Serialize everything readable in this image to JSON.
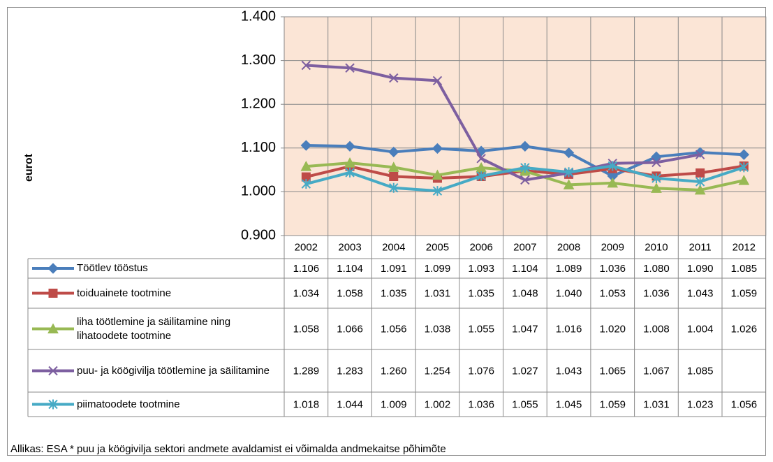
{
  "chart_data": {
    "type": "line",
    "y_label": "eurot",
    "footnote": "Allikas: ESA * puu ja köögivilja sektori andmete avaldamist ei võimalda andmekaitse põhimõte",
    "categories": [
      "2002",
      "2003",
      "2004",
      "2005",
      "2006",
      "2007",
      "2008",
      "2009",
      "2010",
      "2011",
      "2012"
    ],
    "ylim": [
      0.9,
      1.4
    ],
    "yticks": [
      {
        "value": 0.9,
        "label": "0.900"
      },
      {
        "value": 1.0,
        "label": "1.000"
      },
      {
        "value": 1.1,
        "label": "1.100"
      },
      {
        "value": 1.2,
        "label": "1.200"
      },
      {
        "value": 1.3,
        "label": "1.300"
      },
      {
        "value": 1.4,
        "label": "1.400"
      }
    ],
    "grid": true,
    "plot_background": "#fbe5d6",
    "series": [
      {
        "name": "Töötlev tööstus",
        "color": "#4a7ebb",
        "marker": "diamond",
        "values": [
          1.106,
          1.104,
          1.091,
          1.099,
          1.093,
          1.104,
          1.089,
          1.036,
          1.08,
          1.09,
          1.085
        ],
        "value_labels": [
          "1.106",
          "1.104",
          "1.091",
          "1.099",
          "1.093",
          "1.104",
          "1.089",
          "1.036",
          "1.080",
          "1.090",
          "1.085"
        ]
      },
      {
        "name": "toiduainete tootmine",
        "color": "#be4b48",
        "marker": "square",
        "values": [
          1.034,
          1.058,
          1.035,
          1.031,
          1.035,
          1.048,
          1.04,
          1.053,
          1.036,
          1.043,
          1.059
        ],
        "value_labels": [
          "1.034",
          "1.058",
          "1.035",
          "1.031",
          "1.035",
          "1.048",
          "1.040",
          "1.053",
          "1.036",
          "1.043",
          "1.059"
        ]
      },
      {
        "name": "liha töötlemine ja säilitamine ning lihatoodete tootmine",
        "color": "#98b954",
        "marker": "triangle",
        "values": [
          1.058,
          1.066,
          1.056,
          1.038,
          1.055,
          1.047,
          1.016,
          1.02,
          1.008,
          1.004,
          1.026
        ],
        "value_labels": [
          "1.058",
          "1.066",
          "1.056",
          "1.038",
          "1.055",
          "1.047",
          "1.016",
          "1.020",
          "1.008",
          "1.004",
          "1.026"
        ]
      },
      {
        "name": "puu- ja köögivilja töötlemine ja säilitamine",
        "color": "#7d5fa0",
        "marker": "x",
        "values": [
          1.289,
          1.283,
          1.26,
          1.254,
          1.076,
          1.027,
          1.043,
          1.065,
          1.067,
          1.085,
          null
        ],
        "value_labels": [
          "1.289",
          "1.283",
          "1.260",
          "1.254",
          "1.076",
          "1.027",
          "1.043",
          "1.065",
          "1.067",
          "1.085",
          null
        ]
      },
      {
        "name": "piimatoodete tootmine",
        "color": "#46aac5",
        "marker": "asterisk",
        "values": [
          1.018,
          1.044,
          1.009,
          1.002,
          1.036,
          1.055,
          1.045,
          1.059,
          1.031,
          1.023,
          1.056
        ],
        "value_labels": [
          "1.018",
          "1.044",
          "1.009",
          "1.002",
          "1.036",
          "1.055",
          "1.045",
          "1.059",
          "1.031",
          "1.023",
          "1.056"
        ]
      }
    ]
  }
}
